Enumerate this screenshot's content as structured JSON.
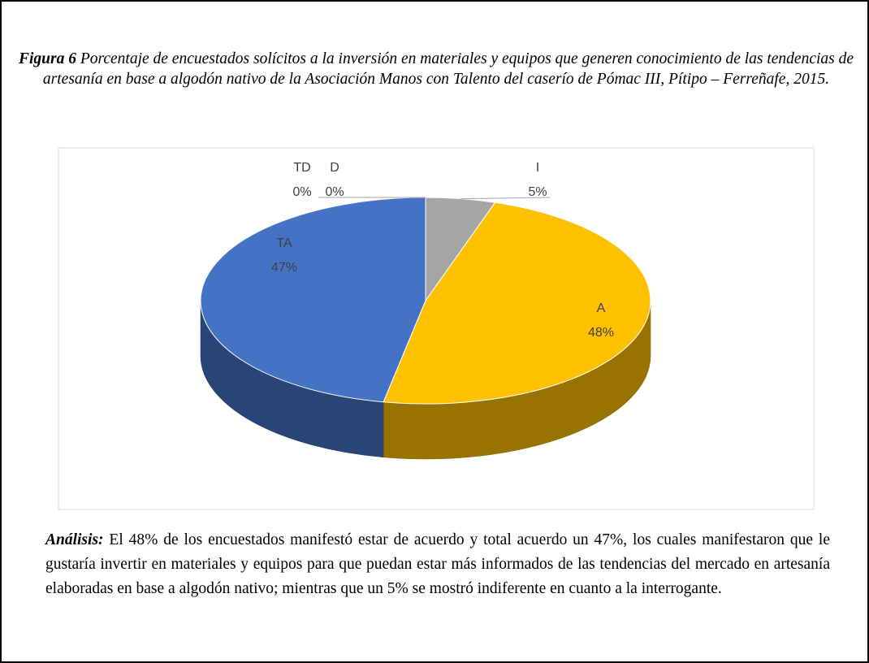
{
  "caption": {
    "label": "Figura 6",
    "text": "Porcentaje de encuestados solícitos a la inversión en materiales y equipos que generen conocimiento de las tendencias de artesanía en base a algodón nativo de la Asociación Manos con Talento del caserío de Pómac III, Pítipo – Ferreñafe, 2015."
  },
  "analysis": {
    "label": "Análisis:",
    "text": "El 48% de los encuestados manifestó estar de acuerdo y total acuerdo un 47%, los cuales manifestaron que le gustaría invertir en materiales y equipos para que puedan estar más informados de las tendencias del mercado en artesanía elaboradas en base a algodón nativo; mientras que un 5% se mostró indiferente en cuanto a la interrogante."
  },
  "chart_data": {
    "type": "pie",
    "categories": [
      "I",
      "A",
      "TA",
      "TD",
      "D"
    ],
    "values": [
      5,
      48,
      47,
      0,
      0
    ],
    "value_labels": [
      "5%",
      "48%",
      "47%",
      "0%",
      "0%"
    ],
    "colors": [
      "#a5a5a5",
      "#ffc000",
      "#4472c4",
      "#5b9bd5",
      "#70ad47"
    ]
  }
}
